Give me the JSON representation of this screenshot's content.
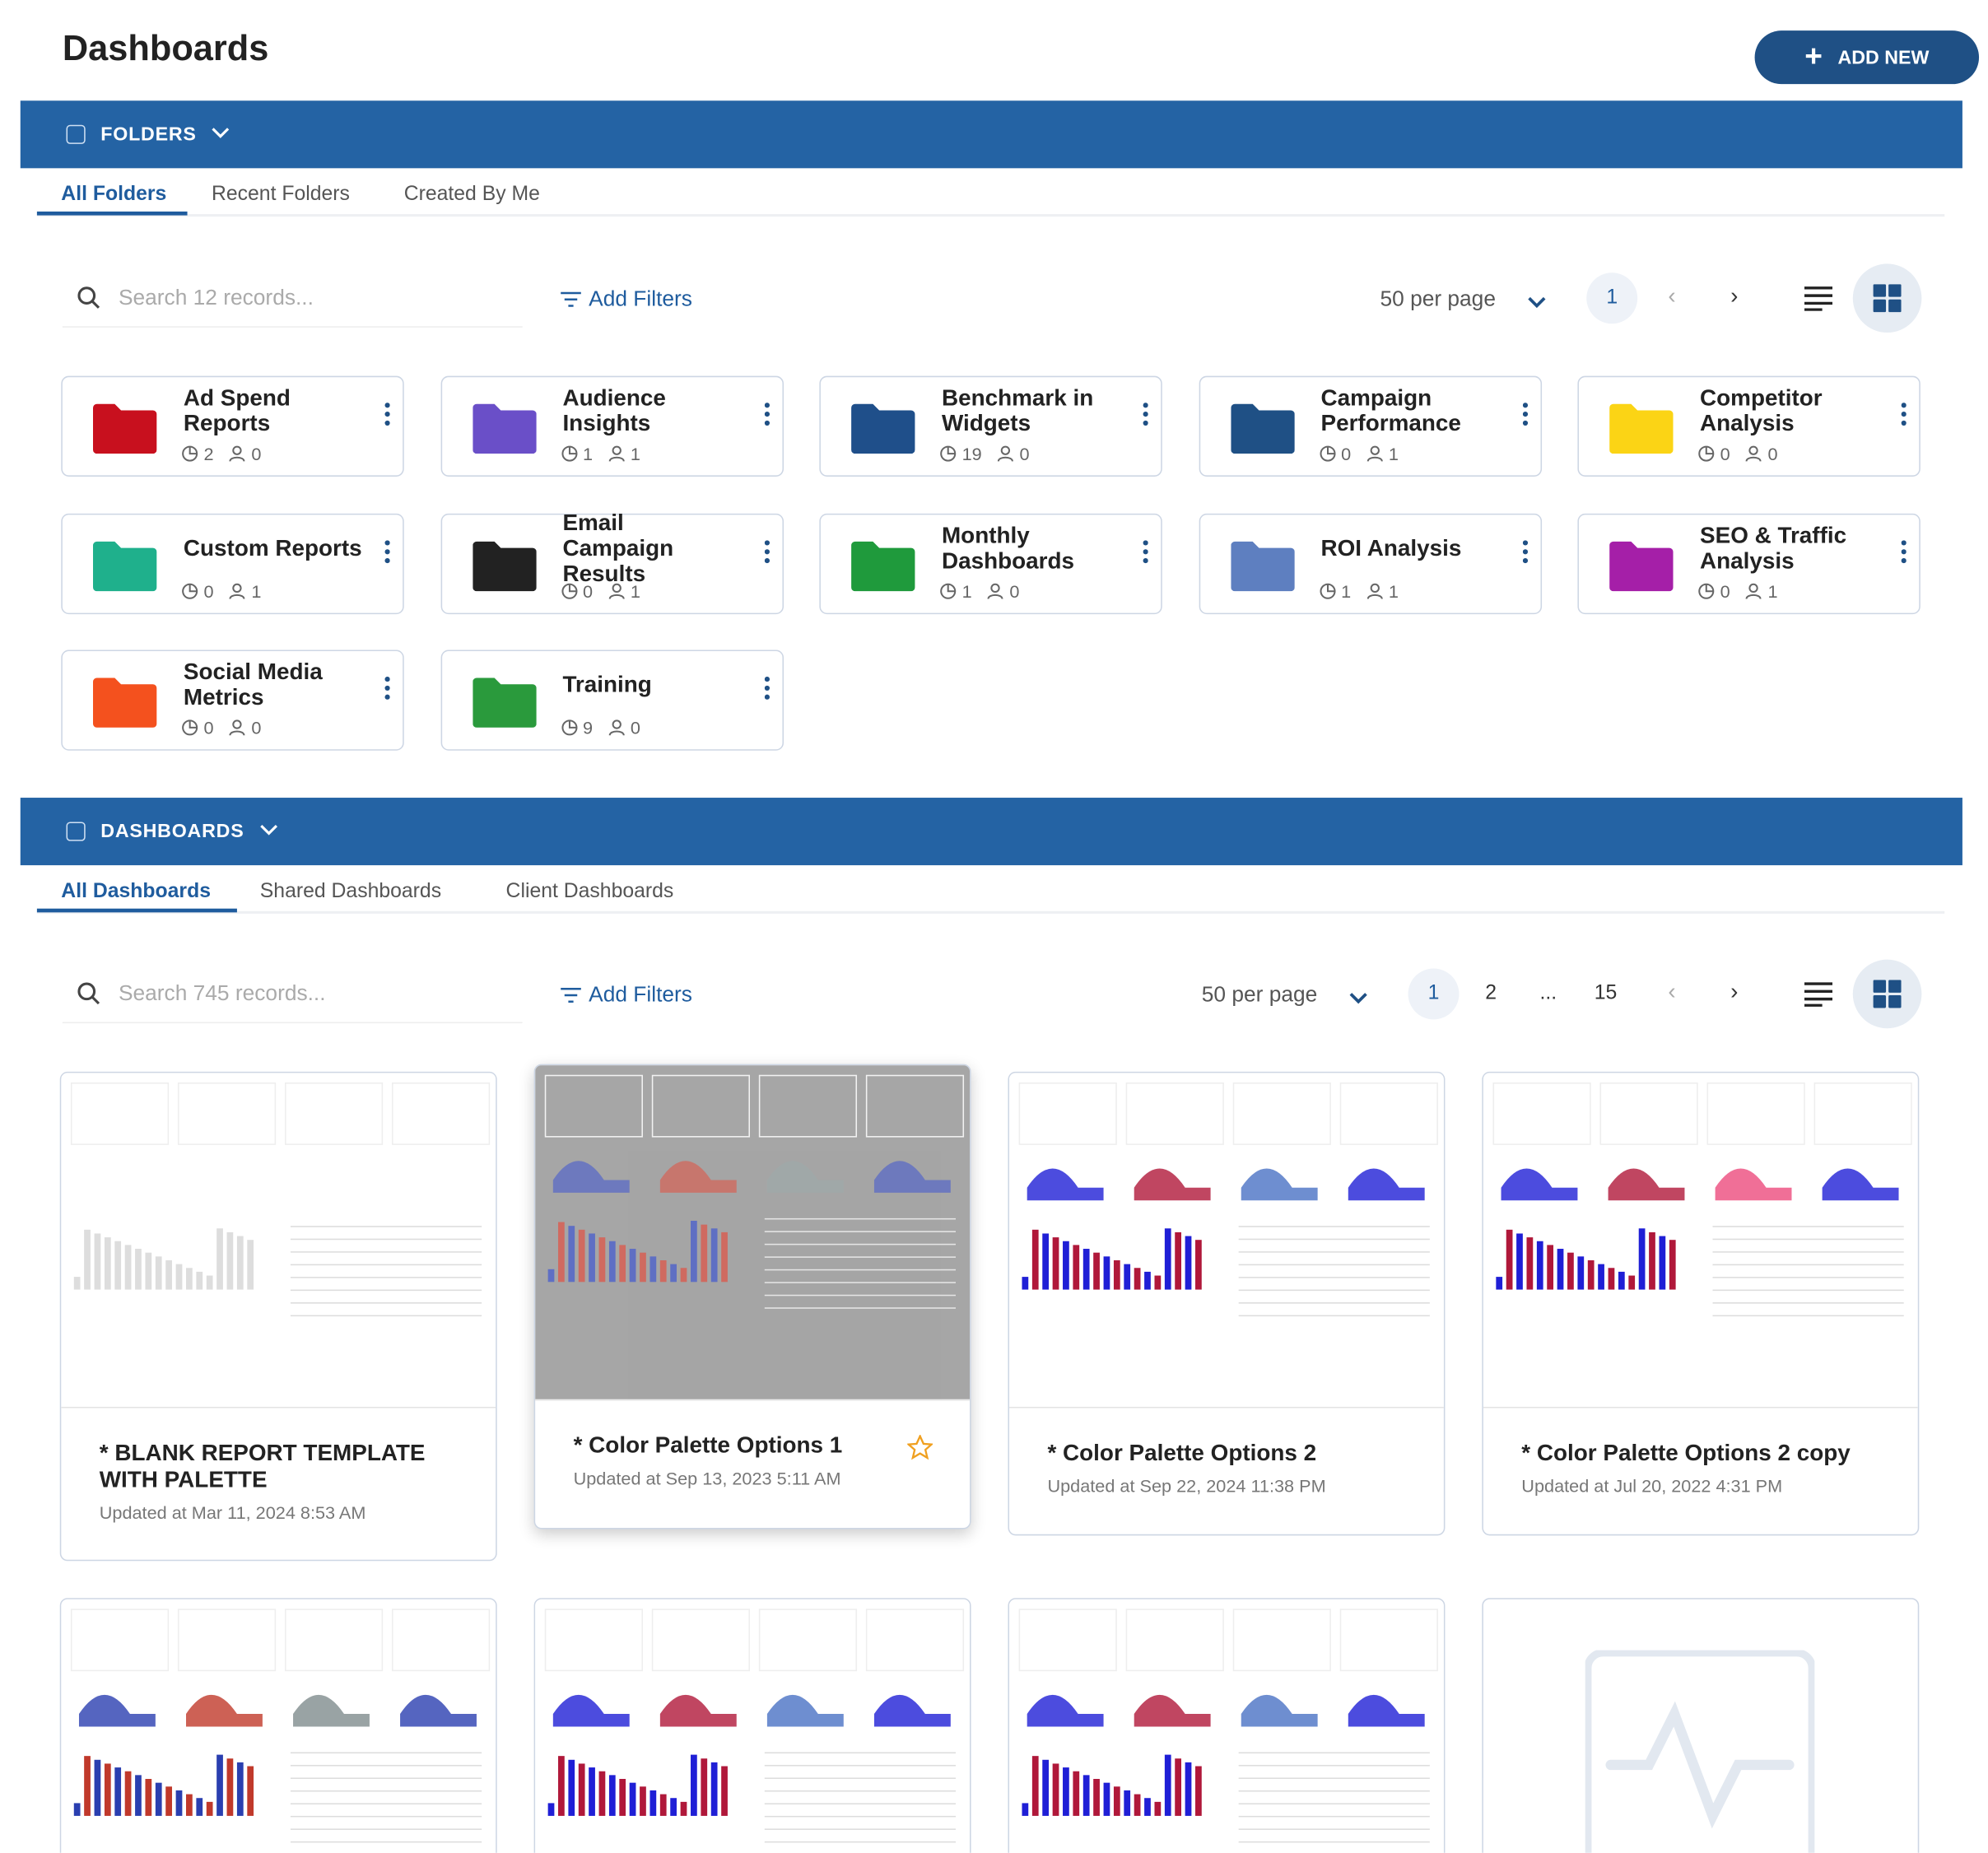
{
  "header": {
    "title": "Dashboards",
    "add_button": "ADD NEW"
  },
  "folders": {
    "label": "FOLDERS",
    "tabs": [
      "All Folders",
      "Recent Folders",
      "Created By Me"
    ],
    "search_placeholder": "Search 12 records...",
    "filters": "Add Filters",
    "per_page": "50 per page",
    "pages": [
      "1"
    ],
    "items": [
      {
        "name": "Ad Spend Reports",
        "dashboards": "2",
        "users": "0",
        "color": "#c8101e"
      },
      {
        "name": "Audience Insights",
        "dashboards": "1",
        "users": "1",
        "color": "#6a4fc8"
      },
      {
        "name": "Benchmark in Widgets",
        "dashboards": "19",
        "users": "0",
        "color": "#1f4f8a"
      },
      {
        "name": "Campaign Performance",
        "dashboards": "0",
        "users": "1",
        "color": "#1f5085"
      },
      {
        "name": "Competitor Analysis",
        "dashboards": "0",
        "users": "0",
        "color": "#fbd415"
      },
      {
        "name": "Custom Reports",
        "dashboards": "0",
        "users": "1",
        "color": "#1fb08c"
      },
      {
        "name": "Email Campaign Results",
        "dashboards": "0",
        "users": "1",
        "color": "#222222"
      },
      {
        "name": "Monthly Dashboards",
        "dashboards": "1",
        "users": "0",
        "color": "#1f9a3c"
      },
      {
        "name": "ROI Analysis",
        "dashboards": "1",
        "users": "1",
        "color": "#5e7fc0"
      },
      {
        "name": "SEO & Traffic Analysis",
        "dashboards": "0",
        "users": "1",
        "color": "#a51fa8"
      },
      {
        "name": "Social Media Metrics",
        "dashboards": "0",
        "users": "0",
        "color": "#f4511e"
      },
      {
        "name": "Training",
        "dashboards": "9",
        "users": "0",
        "color": "#2a9a3c"
      }
    ]
  },
  "dashboards": {
    "label": "DASHBOARDS",
    "tabs": [
      "All Dashboards",
      "Shared Dashboards",
      "Client Dashboards"
    ],
    "search_placeholder": "Search 745 records...",
    "filters": "Add Filters",
    "per_page": "50 per page",
    "pages": [
      "1",
      "2",
      "...",
      "15"
    ],
    "items": [
      {
        "title": "* BLANK REPORT TEMPLATE WITH PALETTE",
        "updated": "Updated at Mar 11, 2024 8:53 AM"
      },
      {
        "title": "* Color Palette Options 1",
        "updated": "Updated at Sep 13, 2023 5:11 AM"
      },
      {
        "title": "* Color Palette Options 2",
        "updated": "Updated at Sep 22, 2024 11:38 PM"
      },
      {
        "title": "* Color Palette Options 2 copy",
        "updated": "Updated at Jul 20, 2022 4:31 PM"
      }
    ]
  }
}
